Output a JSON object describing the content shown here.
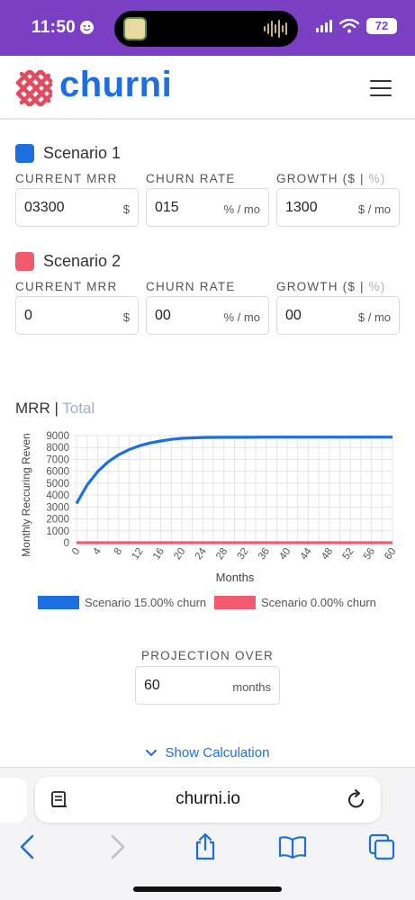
{
  "status_bar": {
    "time": "11:50",
    "battery": "72"
  },
  "header": {
    "brand": "churni"
  },
  "scenarios": [
    {
      "title": "Scenario 1",
      "color": "#1d6fe0",
      "fields": [
        {
          "label": "CURRENT MRR",
          "value": "03300",
          "unit": "$"
        },
        {
          "label": "CHURN RATE",
          "value": "015",
          "unit": "% / mo"
        },
        {
          "label_main": "GROWTH ($",
          "label_pipe": "|",
          "label_alt": "%)",
          "value": "1300",
          "unit": "$ / mo"
        }
      ]
    },
    {
      "title": "Scenario 2",
      "color": "#f25a6e",
      "fields": [
        {
          "label": "CURRENT MRR",
          "value": "0",
          "unit": "$"
        },
        {
          "label": "CHURN RATE",
          "value": "00",
          "unit": "% / mo"
        },
        {
          "label_main": "GROWTH ($",
          "label_pipe": "|",
          "label_alt": "%)",
          "value": "00",
          "unit": "$ / mo"
        }
      ]
    }
  ],
  "chart_section": {
    "title_main": "MRR",
    "title_pipe": "|",
    "title_alt": "Total"
  },
  "chart_data": {
    "type": "line",
    "xlabel": "Months",
    "ylabel": "Monthly Reccuring Reven",
    "xlim": [
      0,
      60
    ],
    "ylim": [
      0,
      9000
    ],
    "x_ticks": [
      0,
      4,
      8,
      12,
      16,
      20,
      24,
      28,
      32,
      36,
      40,
      44,
      48,
      52,
      56,
      60
    ],
    "y_ticks": [
      0,
      1000,
      2000,
      3000,
      4000,
      5000,
      6000,
      7000,
      8000,
      9000
    ],
    "grid": true,
    "legend_position": "bottom",
    "series": [
      {
        "name": "Scenario 15.00% churn",
        "color": "#1d6fe0",
        "x": [
          0,
          2,
          4,
          6,
          8,
          10,
          12,
          14,
          16,
          18,
          20,
          24,
          28,
          32,
          36,
          40,
          44,
          48,
          52,
          56,
          60
        ],
        "values": [
          3300,
          4840,
          5970,
          6790,
          7390,
          7830,
          8150,
          8380,
          8550,
          8680,
          8770,
          8840,
          8860,
          8860,
          8870,
          8870,
          8870,
          8870,
          8870,
          8870,
          8870
        ]
      },
      {
        "name": "Scenario 0.00% churn",
        "color": "#f25a6e",
        "x": [
          0,
          60
        ],
        "values": [
          0,
          0
        ]
      }
    ]
  },
  "projection": {
    "label": "PROJECTION OVER",
    "value": "60",
    "unit": "months"
  },
  "show_calculation": "Show Calculation",
  "browser": {
    "url": "churni.io"
  }
}
